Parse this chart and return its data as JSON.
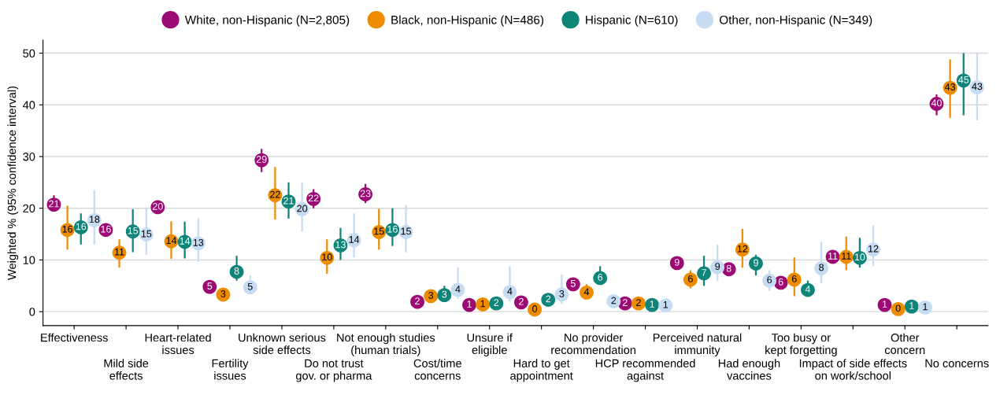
{
  "chart_data": {
    "type": "scatter",
    "ylabel": "Weighted % (95% confidence interval)",
    "categories": [
      "Effectiveness",
      "Mild side\neffects",
      "Heart-related\nissues",
      "Fertility\nissues",
      "Unknown serious\nside effects",
      "Do not trust\ngov. or pharma",
      "Not enough studies\n(human trials)",
      "Cost/time\nconcerns",
      "Unsure if\neligible",
      "Hard to get\nappointment",
      "No provider\nrecommendation",
      "HCP recommended\nagainst",
      "Perceived natural\nimmunity",
      "Had enough\nvaccines",
      "Too busy or\nkept forgetting",
      "Impact of side effects\non work/school",
      "Other\nconcern",
      "No concerns"
    ],
    "ylim": [
      -2.7,
      52.5
    ],
    "yticks": [
      0,
      10,
      20,
      30,
      40,
      50
    ],
    "grid": "y",
    "legend": "top",
    "marker": "circle",
    "series": [
      {
        "name": "White, non-Hispanic (N=2,805)",
        "color": "#9b0b73",
        "values": [
          20.7,
          15.8,
          20.2,
          4.8,
          29.3,
          21.8,
          22.7,
          1.9,
          1.3,
          1.8,
          5.3,
          1.6,
          9.4,
          8.2,
          5.6,
          10.6,
          1.3,
          40.2
        ],
        "value_labels": [
          "21",
          "16",
          "20",
          "5",
          "29",
          "22",
          "23",
          "2",
          "1",
          "2",
          "5",
          "2",
          "9",
          "8",
          "6",
          "11",
          "1",
          "40"
        ],
        "errors": [
          [
            20.7,
            22.5
          ],
          null,
          null,
          null,
          [
            27.0,
            31.5
          ],
          [
            20.0,
            23.7
          ],
          [
            21.0,
            24.7
          ],
          null,
          null,
          null,
          null,
          null,
          null,
          null,
          null,
          null,
          null,
          [
            38.0,
            42.0
          ]
        ]
      },
      {
        "name": "Black, non-Hispanic (N=486)",
        "color": "#ee8c00",
        "values": [
          15.8,
          11.4,
          13.6,
          3.3,
          22.5,
          10.4,
          15.4,
          3.0,
          1.4,
          0.4,
          3.7,
          1.6,
          6.2,
          12.0,
          6.2,
          10.6,
          0.5,
          43.3
        ],
        "value_labels": [
          "16",
          "11",
          "14",
          "3",
          "22",
          "10",
          "15",
          "3",
          "1",
          "0",
          "4",
          "2",
          "6",
          "12",
          "6",
          "11",
          "0",
          "43"
        ],
        "errors": [
          [
            12.0,
            20.5
          ],
          [
            8.5,
            14.0
          ],
          [
            10.2,
            17.5
          ],
          null,
          [
            17.8,
            28.0
          ],
          [
            7.3,
            14.0
          ],
          [
            12.0,
            19.9
          ],
          null,
          null,
          null,
          [
            3.7,
            5.3
          ],
          null,
          [
            4.5,
            8.0
          ],
          [
            8.5,
            16.0
          ],
          [
            3.0,
            10.5
          ],
          [
            8.0,
            14.5
          ],
          null,
          [
            37.5,
            48.8
          ]
        ]
      },
      {
        "name": "Hispanic (N=610)",
        "color": "#0f8479",
        "values": [
          16.3,
          15.5,
          13.5,
          7.7,
          21.3,
          12.8,
          15.8,
          3.2,
          1.6,
          2.3,
          6.5,
          1.3,
          7.4,
          9.3,
          4.2,
          10.4,
          1.0,
          44.7
        ],
        "value_labels": [
          "16",
          "15",
          "14",
          "8",
          "21",
          "13",
          "16",
          "3",
          "2",
          "2",
          "6",
          "1",
          "7",
          "9",
          "4",
          "10",
          "1",
          "45"
        ],
        "errors": [
          [
            13.0,
            19.0
          ],
          [
            11.5,
            19.8
          ],
          [
            10.3,
            17.4
          ],
          [
            6.0,
            10.8
          ],
          [
            18.0,
            25.0
          ],
          [
            10.0,
            16.2
          ],
          [
            12.7,
            20.0
          ],
          [
            3.2,
            5.0
          ],
          null,
          null,
          [
            6.5,
            8.8
          ],
          null,
          [
            5.0,
            10.8
          ],
          [
            7.0,
            11.0
          ],
          [
            4.2,
            6.0
          ],
          [
            8.5,
            14.3
          ],
          null,
          [
            38.0,
            50.0
          ]
        ]
      },
      {
        "name": "Other, non-Hispanic (N=349)",
        "color": "#c6dcf3",
        "values": [
          17.7,
          14.9,
          13.2,
          4.7,
          19.8,
          13.8,
          15.4,
          4.2,
          3.8,
          3.3,
          2.0,
          1.2,
          8.6,
          6.0,
          8.4,
          12.0,
          0.8,
          43.4
        ],
        "value_labels": [
          "18",
          "15",
          "13",
          "5",
          "20",
          "14",
          "15",
          "4",
          "4",
          "3",
          "2",
          "1",
          "9",
          "6",
          "8",
          "12",
          "1",
          "43"
        ],
        "errors": [
          [
            13.0,
            23.5
          ],
          [
            11.0,
            20.0
          ],
          [
            9.7,
            18.0
          ],
          [
            4.7,
            7.0
          ],
          [
            15.5,
            25.0
          ],
          [
            10.5,
            19.0
          ],
          [
            11.5,
            20.6
          ],
          [
            2.5,
            8.5
          ],
          [
            2.0,
            8.8
          ],
          [
            1.5,
            7.2
          ],
          null,
          null,
          [
            6.0,
            13.0
          ],
          [
            4.0,
            8.0
          ],
          [
            5.5,
            13.5
          ],
          [
            8.8,
            16.7
          ],
          null,
          [
            37.0,
            50.0
          ]
        ]
      }
    ]
  }
}
